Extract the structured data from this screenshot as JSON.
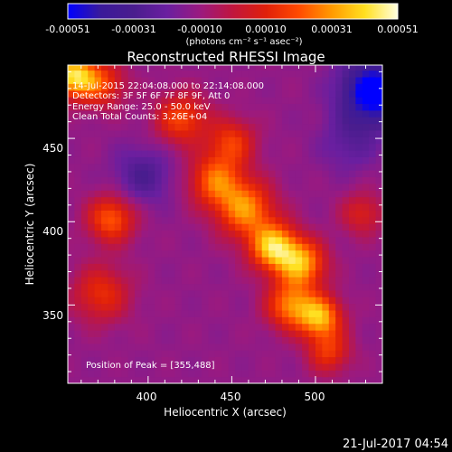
{
  "colorbar": {
    "ticks": [
      "-0.00051",
      "-0.00031",
      "-0.00010",
      "0.00010",
      "0.00031",
      "0.00051"
    ],
    "unit_label": "(photons cm⁻² s⁻¹ asec⁻²)",
    "colors": [
      "#0000ff",
      "#3a1a9a",
      "#4a1d8e",
      "#6a1fa0",
      "#9a1a80",
      "#c0163e",
      "#e0200a",
      "#ff4a00",
      "#ff9a00",
      "#ffe020",
      "#ffffe0"
    ]
  },
  "annotations": {
    "time_range": "14-Jul-2015 22:04:08.000 to 22:14:08.000",
    "detectors": "Detectors: 3F 5F 6F 7F 8F 9F, Att 0",
    "energy": "Energy Range: 25.0 - 50.0 keV",
    "clean": "Clean   Total Counts: 3.26E+04",
    "peak": "Position of Peak = [355,488]"
  },
  "footer": {
    "timestamp": "21-Jul-2017 04:54"
  },
  "chart_data": {
    "type": "heatmap",
    "title": "Reconstructed RHESSI Image",
    "xlabel": "Heliocentric X (arcsec)",
    "ylabel": "Heliocentric Y (arcsec)",
    "xlim": [
      352,
      540
    ],
    "ylim": [
      303,
      494
    ],
    "xticks": [
      "400",
      "450",
      "500"
    ],
    "yticks": [
      "350",
      "400",
      "450"
    ],
    "intensity_range": [
      -0.00051,
      0.00051
    ],
    "peak_position": [
      355,
      488
    ],
    "sources": [
      {
        "x": 355,
        "y": 488,
        "intensity": 0.00051,
        "sigma": 9
      },
      {
        "x": 372,
        "y": 483,
        "intensity": 0.00028,
        "sigma": 10
      },
      {
        "x": 420,
        "y": 462,
        "intensity": 0.0003,
        "sigma": 11
      },
      {
        "x": 450,
        "y": 448,
        "intensity": 0.00027,
        "sigma": 10
      },
      {
        "x": 440,
        "y": 425,
        "intensity": 0.00034,
        "sigma": 11
      },
      {
        "x": 458,
        "y": 408,
        "intensity": 0.0004,
        "sigma": 12
      },
      {
        "x": 475,
        "y": 385,
        "intensity": 0.0005,
        "sigma": 10
      },
      {
        "x": 492,
        "y": 375,
        "intensity": 0.00043,
        "sigma": 10
      },
      {
        "x": 485,
        "y": 350,
        "intensity": 0.00038,
        "sigma": 10
      },
      {
        "x": 503,
        "y": 343,
        "intensity": 0.00044,
        "sigma": 9
      },
      {
        "x": 508,
        "y": 322,
        "intensity": 0.00026,
        "sigma": 9
      },
      {
        "x": 378,
        "y": 402,
        "intensity": 0.00034,
        "sigma": 10
      },
      {
        "x": 372,
        "y": 357,
        "intensity": 0.00025,
        "sigma": 12
      },
      {
        "x": 528,
        "y": 405,
        "intensity": 0.0002,
        "sigma": 9
      },
      {
        "x": 535,
        "y": 478,
        "intensity": -0.00046,
        "sigma": 14
      },
      {
        "x": 397,
        "y": 428,
        "intensity": -0.00018,
        "sigma": 12
      },
      {
        "x": 520,
        "y": 447,
        "intensity": -0.00012,
        "sigma": 12
      }
    ]
  }
}
